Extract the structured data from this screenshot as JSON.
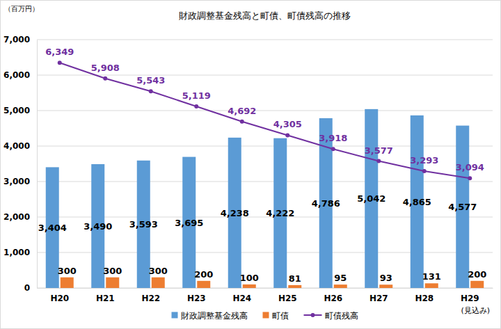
{
  "chart_data": {
    "type": "bar",
    "title": "財政調整基金残高と町債、町債残高の推移",
    "y_label": "（百万円）",
    "categories": [
      "H20",
      "H21",
      "H22",
      "H23",
      "H24",
      "H25",
      "H26",
      "H27",
      "H28",
      "H29"
    ],
    "series": [
      {
        "name": "財政調整基金残高",
        "type": "bar",
        "color": "#5b9bd5",
        "values": [
          3404,
          3490,
          3593,
          3695,
          4238,
          4222,
          4786,
          5042,
          4865,
          4577
        ],
        "value_labels": [
          "3,404",
          "3,490",
          "3,593",
          "3,695",
          "4,238",
          "4,222",
          "4,786",
          "5,042",
          "4,865",
          "4,577"
        ]
      },
      {
        "name": "町債",
        "type": "bar",
        "color": "#ed7d31",
        "values": [
          300,
          300,
          300,
          200,
          100,
          81,
          95,
          93,
          131,
          200
        ]
      },
      {
        "name": "町債残高",
        "type": "line",
        "color": "#7030a0",
        "marker": "circle",
        "values": [
          6349,
          5908,
          5543,
          5119,
          4692,
          4305,
          3918,
          3577,
          3293,
          3094
        ],
        "value_labels": [
          "6,349",
          "5,908",
          "5,543",
          "5,119",
          "4,692",
          "4,305",
          "3,918",
          "3,577",
          "3,293",
          "3,094"
        ]
      }
    ],
    "ylim": [
      0,
      7000
    ],
    "yticks": [
      0,
      {
        "value": 1000,
        "label": "1,000"
      },
      {
        "value": 2000,
        "label": "2,000"
      },
      {
        "value": 3000,
        "label": "3,000"
      },
      {
        "value": 4000,
        "label": "4,000"
      },
      {
        "value": 5000,
        "label": "5,000"
      },
      {
        "value": 6000,
        "label": "6,000"
      },
      {
        "value": 7000,
        "label": "7,000"
      }
    ],
    "grid": true,
    "data_labels": true,
    "legend": "bottom",
    "annotations": [
      {
        "category": "H29",
        "text": "(見込み)"
      }
    ]
  }
}
